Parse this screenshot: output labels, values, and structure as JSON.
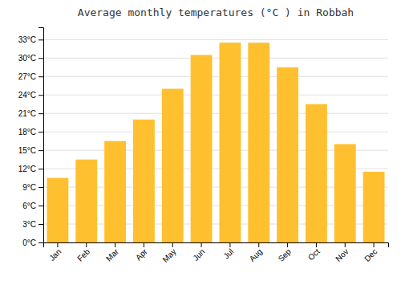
{
  "chart_data": {
    "type": "bar",
    "title": "Average monthly temperatures (°C ) in Robbah",
    "categories": [
      "Jan",
      "Feb",
      "Mar",
      "Apr",
      "May",
      "Jun",
      "Jul",
      "Aug",
      "Sep",
      "Oct",
      "Nov",
      "Dec"
    ],
    "values": [
      10.5,
      13.5,
      16.5,
      20.0,
      25.0,
      30.5,
      32.5,
      32.5,
      28.5,
      22.5,
      16.0,
      11.5
    ],
    "color": "#FFC030",
    "ylim": [
      0,
      35
    ],
    "yticks": [
      {
        "value": 0,
        "label": "0°C"
      },
      {
        "value": 3,
        "label": "3°C"
      },
      {
        "value": 6,
        "label": "6°C"
      },
      {
        "value": 9,
        "label": "9°C"
      },
      {
        "value": 12,
        "label": "12°C"
      },
      {
        "value": 15,
        "label": "15°C"
      },
      {
        "value": 18,
        "label": "18°C"
      },
      {
        "value": 21,
        "label": "21°C"
      },
      {
        "value": 24,
        "label": "24°C"
      },
      {
        "value": 27,
        "label": "27°C"
      },
      {
        "value": 30,
        "label": "30°C"
      },
      {
        "value": 33,
        "label": "33°C"
      }
    ],
    "grid": true
  }
}
